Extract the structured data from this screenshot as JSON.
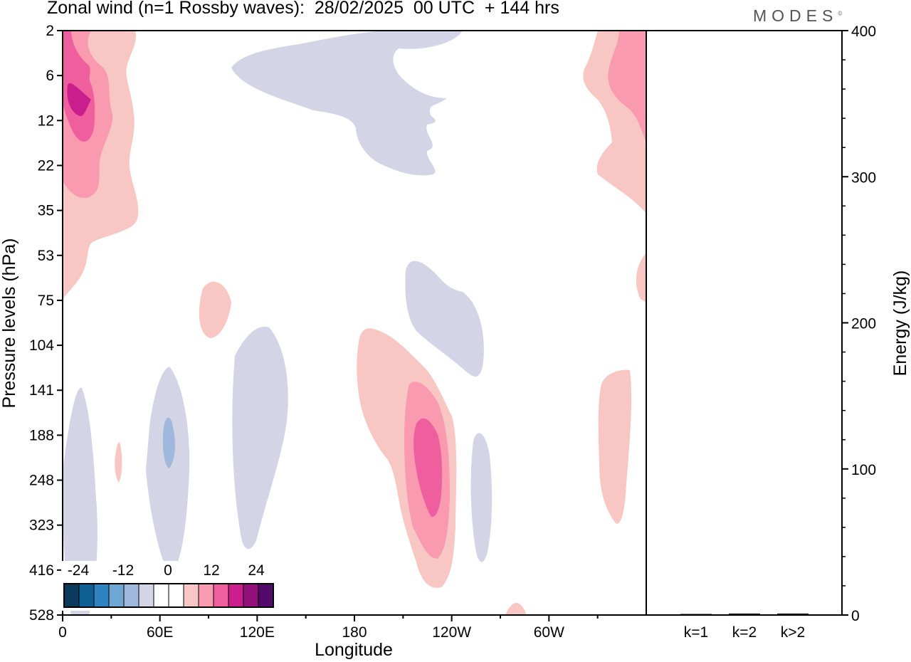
{
  "title": "Zonal wind (n=1 Rossby waves):  28/02/2025  00 UTC  + 144 hrs",
  "brand": "MODES",
  "brand_mark": "©",
  "colors": {
    "neg5": "#0b3a5c",
    "neg4": "#0e5f94",
    "neg3": "#2f83c0",
    "neg2": "#6fa8d2",
    "neg1": "#9fb8dc",
    "neg0": "#d3d5e6",
    "pos0": "#f8c7c3",
    "pos1": "#f99ab1",
    "pos2": "#ef5f9e",
    "pos3": "#c91e8b",
    "pos4": "#91107a",
    "pos5": "#530a6b"
  },
  "chart_data": [
    {
      "type": "heatmap",
      "variable": "Zonal wind",
      "xlabel": "Longitude",
      "ylabel": "Pressure levels (hPa)",
      "x_ticks": [
        "0",
        "60E",
        "120E",
        "180",
        "120W",
        "60W"
      ],
      "y_ticks": [
        "2",
        "6",
        "12",
        "22",
        "35",
        "53",
        "75",
        "104",
        "141",
        "188",
        "248",
        "323",
        "416",
        "528"
      ],
      "colorbar": {
        "labels": [
          "-24",
          "-12",
          "0",
          "12",
          "24"
        ],
        "levels": [
          -24,
          -20,
          -16,
          -12,
          -8,
          -4,
          0,
          4,
          8,
          12,
          16,
          20,
          24
        ]
      },
      "contours": [
        {
          "sign": "positive",
          "max_level": 20,
          "lon_center": 10,
          "pressure_center": 10,
          "note": "upper-level positive maximum near 0-30E"
        },
        {
          "sign": "negative",
          "max_level": -4,
          "lon_center": 215,
          "pressure_center": 8
        },
        {
          "sign": "positive",
          "max_level": 8,
          "lon_center": 355,
          "pressure_center": 10
        },
        {
          "sign": "positive",
          "max_level": 4,
          "lon_center": 90,
          "pressure_center": 95
        },
        {
          "sign": "negative",
          "max_level": -8,
          "lon_center": 65,
          "pressure_center": 190
        },
        {
          "sign": "negative",
          "max_level": -4,
          "lon_center": 120,
          "pressure_center": 180
        },
        {
          "sign": "negative",
          "max_level": -4,
          "lon_center": 8,
          "pressure_center": 300
        },
        {
          "sign": "negative",
          "max_level": -4,
          "lon_center": 220,
          "pressure_center": 95
        },
        {
          "sign": "positive",
          "max_level": 12,
          "lon_center": 230,
          "pressure_center": 220
        },
        {
          "sign": "negative",
          "max_level": -4,
          "lon_center": 258,
          "pressure_center": 280
        },
        {
          "sign": "positive",
          "max_level": 4,
          "lon_center": 335,
          "pressure_center": 190
        }
      ]
    },
    {
      "type": "bar",
      "ylabel": "Energy (J/kg)",
      "categories": [
        "k=1",
        "k=2",
        "k>2"
      ],
      "values": [
        0,
        1,
        1
      ],
      "ylim": [
        0,
        400
      ],
      "y_ticks": [
        "0",
        "100",
        "200",
        "300",
        "400"
      ]
    }
  ]
}
